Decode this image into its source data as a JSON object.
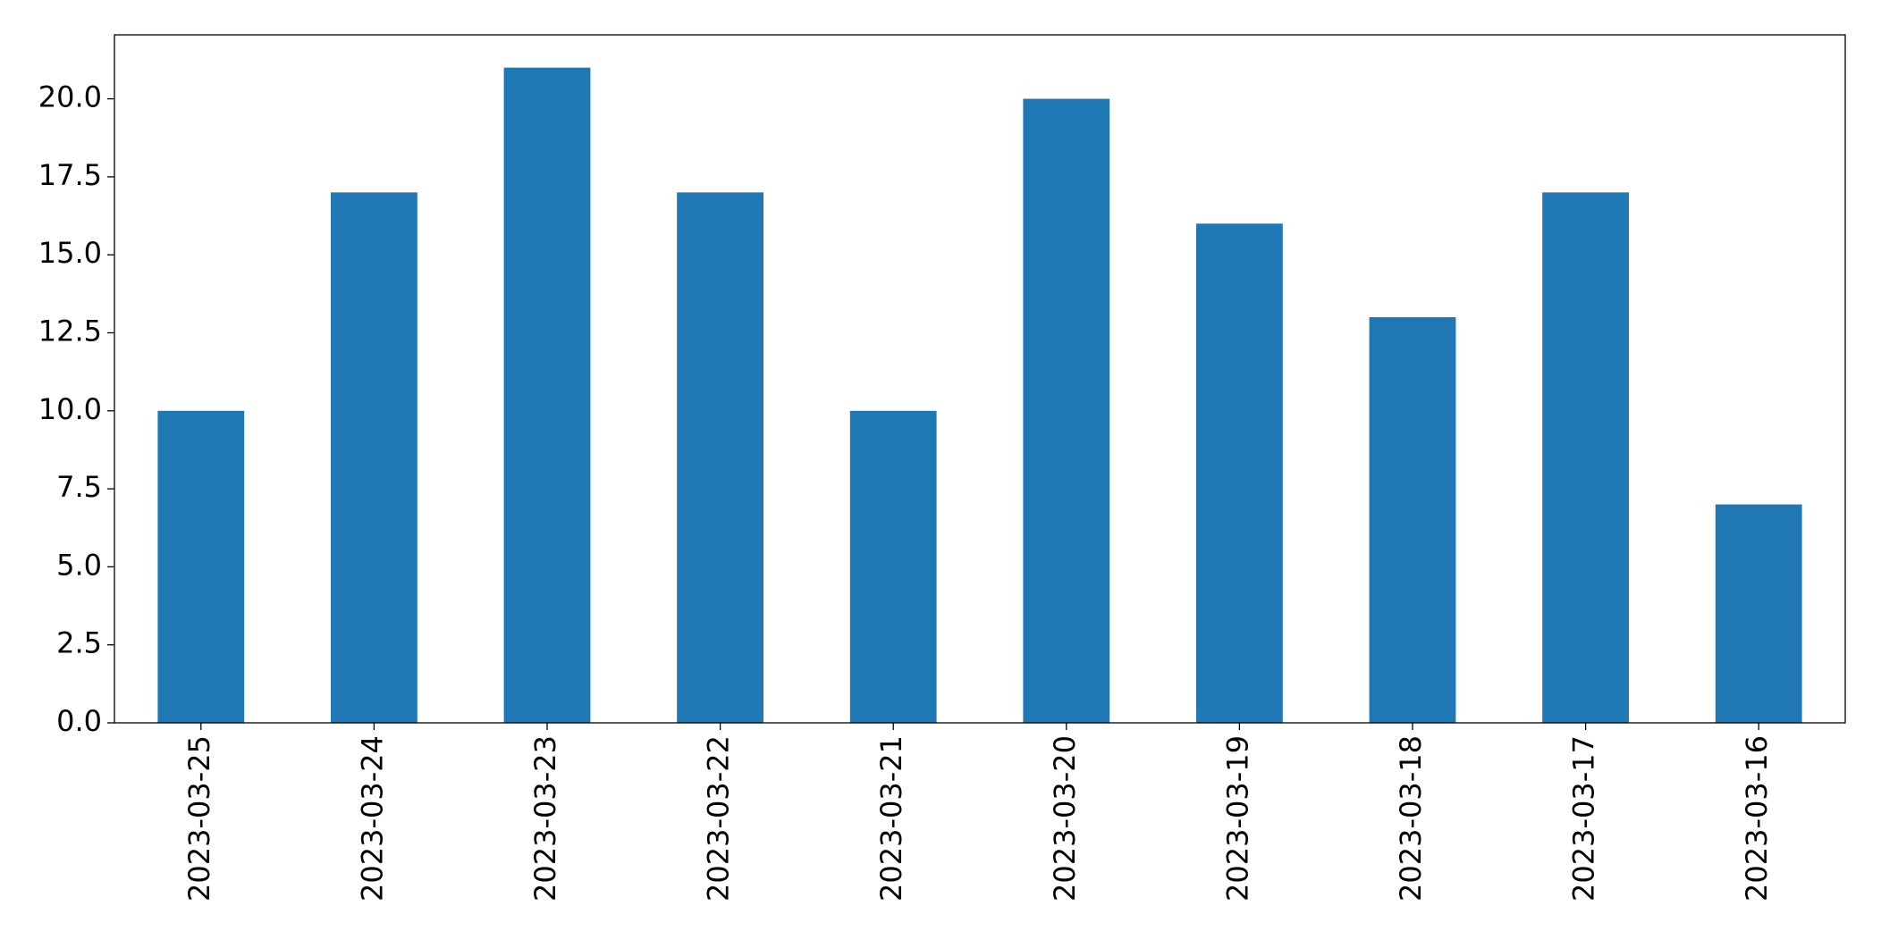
{
  "chart_data": {
    "type": "bar",
    "categories": [
      "2023-03-25",
      "2023-03-24",
      "2023-03-23",
      "2023-03-22",
      "2023-03-21",
      "2023-03-20",
      "2023-03-19",
      "2023-03-18",
      "2023-03-17",
      "2023-03-16"
    ],
    "values": [
      10,
      17,
      21,
      17,
      10,
      20,
      16,
      13,
      17,
      7
    ],
    "color": "#1f77b4",
    "ylim": [
      0,
      22.05
    ],
    "yticks": [
      {
        "value": 0,
        "label": "0.0"
      },
      2.5,
      {
        "value": 5,
        "label": "5.0"
      },
      7.5,
      {
        "value": 10,
        "label": "10.0"
      },
      12.5,
      {
        "value": 15,
        "label": "15.0"
      },
      17.5,
      {
        "value": 20,
        "label": "20.0"
      }
    ],
    "grid": false
  }
}
